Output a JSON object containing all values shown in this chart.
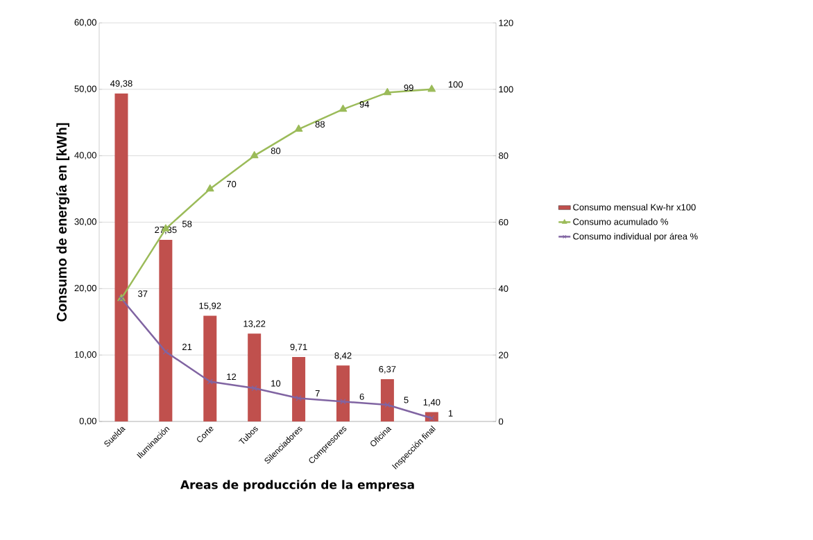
{
  "chart_data": {
    "type": "bar",
    "xlabel": "Areas de producción de la empresa",
    "ylabel": "Consumo de energía en [kWh]",
    "categories": [
      "Suelda",
      "Iluminación",
      "Corte",
      "Tubos",
      "Silenciadores",
      "Compresores",
      "Oficina",
      "Inspección final"
    ],
    "series": [
      {
        "name": "Consumo mensual Kw-hr x100",
        "color": "#c0504d",
        "values": [
          49.38,
          27.35,
          15.92,
          13.22,
          9.71,
          8.42,
          6.37,
          1.4
        ],
        "value_labels": [
          "49,38",
          "27,35",
          "15,92",
          "13,22",
          "9,71",
          "8,42",
          "6,37",
          "1,40"
        ]
      },
      {
        "name": "Consumo acumulado %",
        "type": "line",
        "axis": "y2",
        "marker": "triangle",
        "color": "#9bbb59",
        "values": [
          37,
          58,
          70,
          80,
          88,
          94,
          99,
          100
        ],
        "value_labels": [
          null,
          "58",
          "70",
          "80",
          "88",
          "94",
          "99",
          "100"
        ]
      },
      {
        "name": "Consumo individual por área %",
        "type": "line",
        "axis": "y2",
        "marker": "cross",
        "color": "#8064a2",
        "values": [
          37,
          21,
          12,
          10,
          7,
          6,
          5,
          1
        ],
        "value_labels": [
          "37",
          "21",
          "12",
          "10",
          "7",
          "6",
          "5",
          "1"
        ]
      }
    ],
    "ylim": [
      0,
      60
    ],
    "yticks": [
      {
        "value": 0,
        "label": "0,00"
      },
      {
        "value": 10,
        "label": "10,00"
      },
      {
        "value": 20,
        "label": "20,00"
      },
      {
        "value": 30,
        "label": "30,00"
      },
      {
        "value": 40,
        "label": "40,00"
      },
      {
        "value": 50,
        "label": "50,00"
      },
      {
        "value": 60,
        "label": "60,00"
      }
    ],
    "y2lim": [
      0,
      120
    ],
    "y2ticks": [
      0,
      20,
      40,
      60,
      80,
      100,
      120
    ],
    "grid": "y",
    "legend": "right"
  }
}
